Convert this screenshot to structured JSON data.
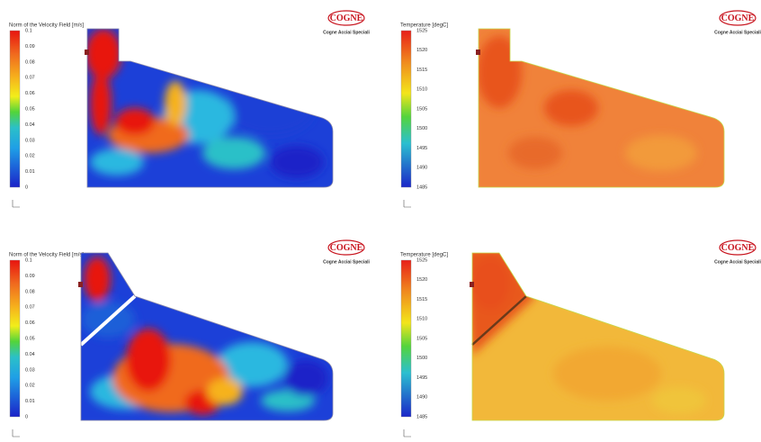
{
  "panels": [
    {
      "legend_title": "Norm of the Velocity Field [m/s]",
      "ticks": [
        "0.1",
        "0.09",
        "0.08",
        "0.07",
        "0.06",
        "0.05",
        "0.04",
        "0.03",
        "0.02",
        "0.01",
        "0"
      ],
      "logo": "COGNE",
      "company": "Cogne Acciai Speciali"
    },
    {
      "legend_title": "Temperature [degC]",
      "ticks": [
        "1525",
        "1520",
        "1515",
        "1510",
        "1505",
        "1500",
        "1495",
        "1490",
        "1485"
      ],
      "logo": "COGNE",
      "company": "Cogne Acciai Speciali"
    },
    {
      "legend_title": "Norm of the Velocity Field [m/s]",
      "ticks": [
        "0.1",
        "0.09",
        "0.08",
        "0.07",
        "0.06",
        "0.05",
        "0.04",
        "0.03",
        "0.02",
        "0.01",
        "0"
      ],
      "logo": "COGNE",
      "company": "Cogne Acciai Speciali"
    },
    {
      "legend_title": "Temperature [degC]",
      "ticks": [
        "1525",
        "1520",
        "1515",
        "1510",
        "1505",
        "1500",
        "1495",
        "1490",
        "1485"
      ],
      "logo": "COGNE",
      "company": "Cogne Acciai Speciali"
    }
  ]
}
